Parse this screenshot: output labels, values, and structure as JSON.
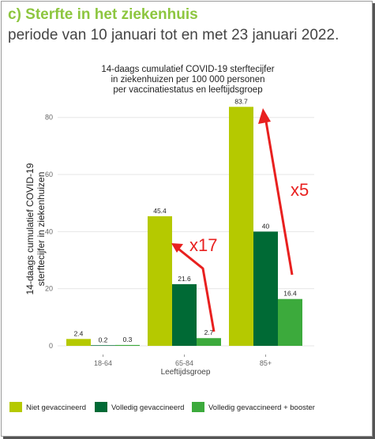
{
  "header": {
    "title": "c)  Sterfte in het ziekenhuis",
    "subtitle": "periode van 10 januari tot en met 23 januari 2022."
  },
  "chart_data": {
    "type": "bar",
    "title_lines": [
      "14-daags cumulatief COVID-19 sterftecijfer",
      "in ziekenhuizen per 100 000 personen",
      "per vaccinatiestatus en leeftijdsgroep"
    ],
    "categories": [
      "18-64",
      "65-84",
      "85+"
    ],
    "series": [
      {
        "name": "Niet gevaccineerd",
        "color": "#b5c900",
        "values": [
          2.4,
          45.4,
          83.7
        ]
      },
      {
        "name": "Volledig gevaccineerd",
        "color": "#006a35",
        "values": [
          0.2,
          21.6,
          40
        ]
      },
      {
        "name": "Volledig gevaccineerd + booster",
        "color": "#3caa3c",
        "values": [
          0.3,
          2.7,
          16.4
        ]
      }
    ],
    "data_labels": [
      [
        "2.4",
        "0.2",
        "0.3"
      ],
      [
        "45.4",
        "21.6",
        "2.7"
      ],
      [
        "83.7",
        "40",
        "16.4"
      ]
    ],
    "xlabel": "Leeftijdsgroep",
    "ylabel_lines": [
      "14-daags cumulatief COVID-19",
      "sterftecijfer in ziekenhuizen"
    ],
    "ylim": [
      0,
      86
    ],
    "yticks": [
      0,
      20,
      40,
      60,
      80
    ],
    "grid": true,
    "legend_position": "bottom",
    "annotations": [
      "x17",
      "x5"
    ],
    "annotation_color": "#e8201f"
  }
}
